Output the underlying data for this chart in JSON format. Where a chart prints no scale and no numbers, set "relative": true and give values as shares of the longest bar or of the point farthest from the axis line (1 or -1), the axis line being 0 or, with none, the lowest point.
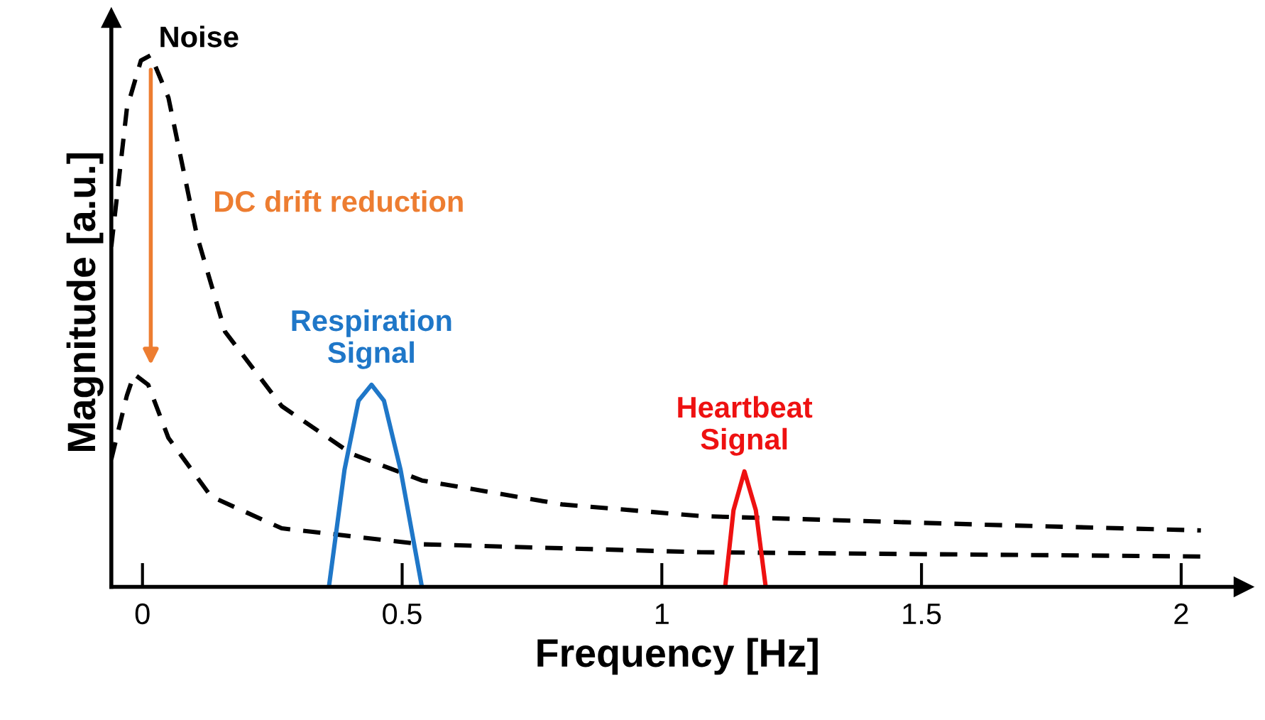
{
  "chart_data": {
    "type": "line",
    "xlabel": "Frequency [Hz]",
    "ylabel": "Magnitude [a.u.]",
    "relative": true,
    "xlim": [
      -0.06,
      2.12
    ],
    "xticks": [
      0,
      0.5,
      1,
      1.5,
      2
    ],
    "grid": false,
    "legend": false,
    "marker": "none",
    "series": [
      {
        "color": "#000000",
        "line_style": "dashed",
        "x": [
          -0.06,
          -0.03,
          -0.003,
          0.016,
          0.05,
          0.105,
          0.159,
          0.268,
          0.403,
          0.538,
          0.808,
          1.076,
          1.616,
          2.038
        ],
        "values": [
          0.64,
          0.9,
          0.99,
          1.0,
          0.92,
          0.66,
          0.48,
          0.34,
          0.25,
          0.2,
          0.155,
          0.133,
          0.117,
          0.106
        ]
      },
      {
        "color": "#000000",
        "line_style": "dashed",
        "x": [
          -0.06,
          -0.03,
          -0.016,
          0.011,
          0.05,
          0.132,
          0.268,
          0.538,
          1.076,
          2.038
        ],
        "values": [
          0.24,
          0.36,
          0.4,
          0.38,
          0.28,
          0.17,
          0.11,
          0.08,
          0.065,
          0.057
        ]
      },
      {
        "name": "Respiration\nSignal",
        "color": "#1f77c8",
        "line_style": "solid",
        "x": [
          0.359,
          0.389,
          0.416,
          0.441,
          0.465,
          0.497,
          0.538
        ],
        "values": [
          0.0,
          0.22,
          0.35,
          0.38,
          0.35,
          0.22,
          0.0
        ]
      },
      {
        "name": "Heartbeat\nSignal",
        "color": "#ee1111",
        "line_style": "solid",
        "x": [
          1.122,
          1.138,
          1.159,
          1.181,
          1.2
        ],
        "values": [
          0.0,
          0.144,
          0.217,
          0.144,
          0.0
        ]
      }
    ],
    "annotations": [
      {
        "text": "Noise",
        "x": 0.016,
        "y": 1.0
      },
      "DC drift reduction"
    ]
  }
}
